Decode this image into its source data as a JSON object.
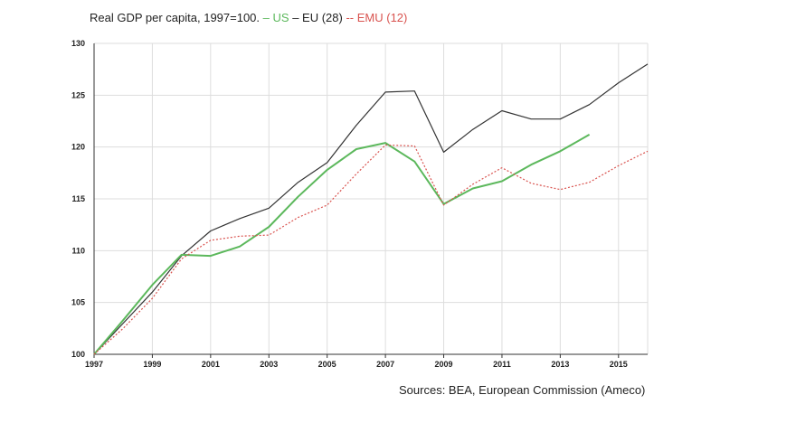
{
  "title": {
    "prefix": "Real GDP per capita, 1997=100.",
    "us_marker": " – ",
    "us_label": "US",
    "eu_marker": " – ",
    "eu_label": "EU (28)",
    "emu_marker": "  -- ",
    "emu_label": "EMU (12)"
  },
  "source": "Sources: BEA, European Commission (Ameco)",
  "colors": {
    "us": "#5cb85c",
    "eu": "#333333",
    "emu": "#d9534f",
    "grid": "#dddddd",
    "axis": "#333333"
  },
  "chart_data": {
    "type": "line",
    "xlim": [
      1997,
      2016
    ],
    "ylim": [
      100,
      130
    ],
    "x_ticks": [
      "1997",
      "1999",
      "2001",
      "2003",
      "2005",
      "2007",
      "2009",
      "2011",
      "2013",
      "2015"
    ],
    "y_ticks": [
      "100",
      "105",
      "110",
      "115",
      "120",
      "125",
      "130"
    ],
    "grid": true,
    "series": [
      {
        "name": "EU (28)",
        "key": "eu",
        "style": "solid",
        "x": [
          1997,
          1998,
          1999,
          2000,
          2001,
          2002,
          2003,
          2004,
          2005,
          2006,
          2007,
          2008,
          2009,
          2010,
          2011,
          2012,
          2013,
          2014,
          2015,
          2016
        ],
        "y": [
          100,
          103.0,
          106.0,
          109.5,
          111.9,
          113.1,
          114.1,
          116.6,
          118.5,
          122.1,
          125.3,
          125.4,
          119.5,
          121.7,
          123.5,
          122.7,
          122.7,
          124.1,
          126.2,
          128.0
        ]
      },
      {
        "name": "US",
        "key": "us",
        "style": "solid",
        "x": [
          1997,
          1998,
          1999,
          2000,
          2001,
          2002,
          2003,
          2004,
          2005,
          2006,
          2007,
          2008,
          2009,
          2010,
          2011,
          2012,
          2013,
          2014
        ],
        "y": [
          100,
          103.3,
          106.7,
          109.6,
          109.5,
          110.4,
          112.3,
          115.2,
          117.8,
          119.8,
          120.4,
          118.6,
          114.5,
          116.0,
          116.7,
          118.3,
          119.6,
          121.2
        ]
      },
      {
        "name": "EMU (12)",
        "key": "emu",
        "style": "dashed",
        "x": [
          1997,
          1998,
          1999,
          2000,
          2001,
          2002,
          2003,
          2004,
          2005,
          2006,
          2007,
          2008,
          2009,
          2010,
          2011,
          2012,
          2013,
          2014,
          2015,
          2016
        ],
        "y": [
          100,
          102.5,
          105.4,
          109.2,
          111.0,
          111.4,
          111.5,
          113.2,
          114.4,
          117.4,
          120.2,
          120.1,
          114.4,
          116.4,
          118.0,
          116.5,
          115.9,
          116.6,
          118.2,
          119.6
        ]
      }
    ]
  }
}
